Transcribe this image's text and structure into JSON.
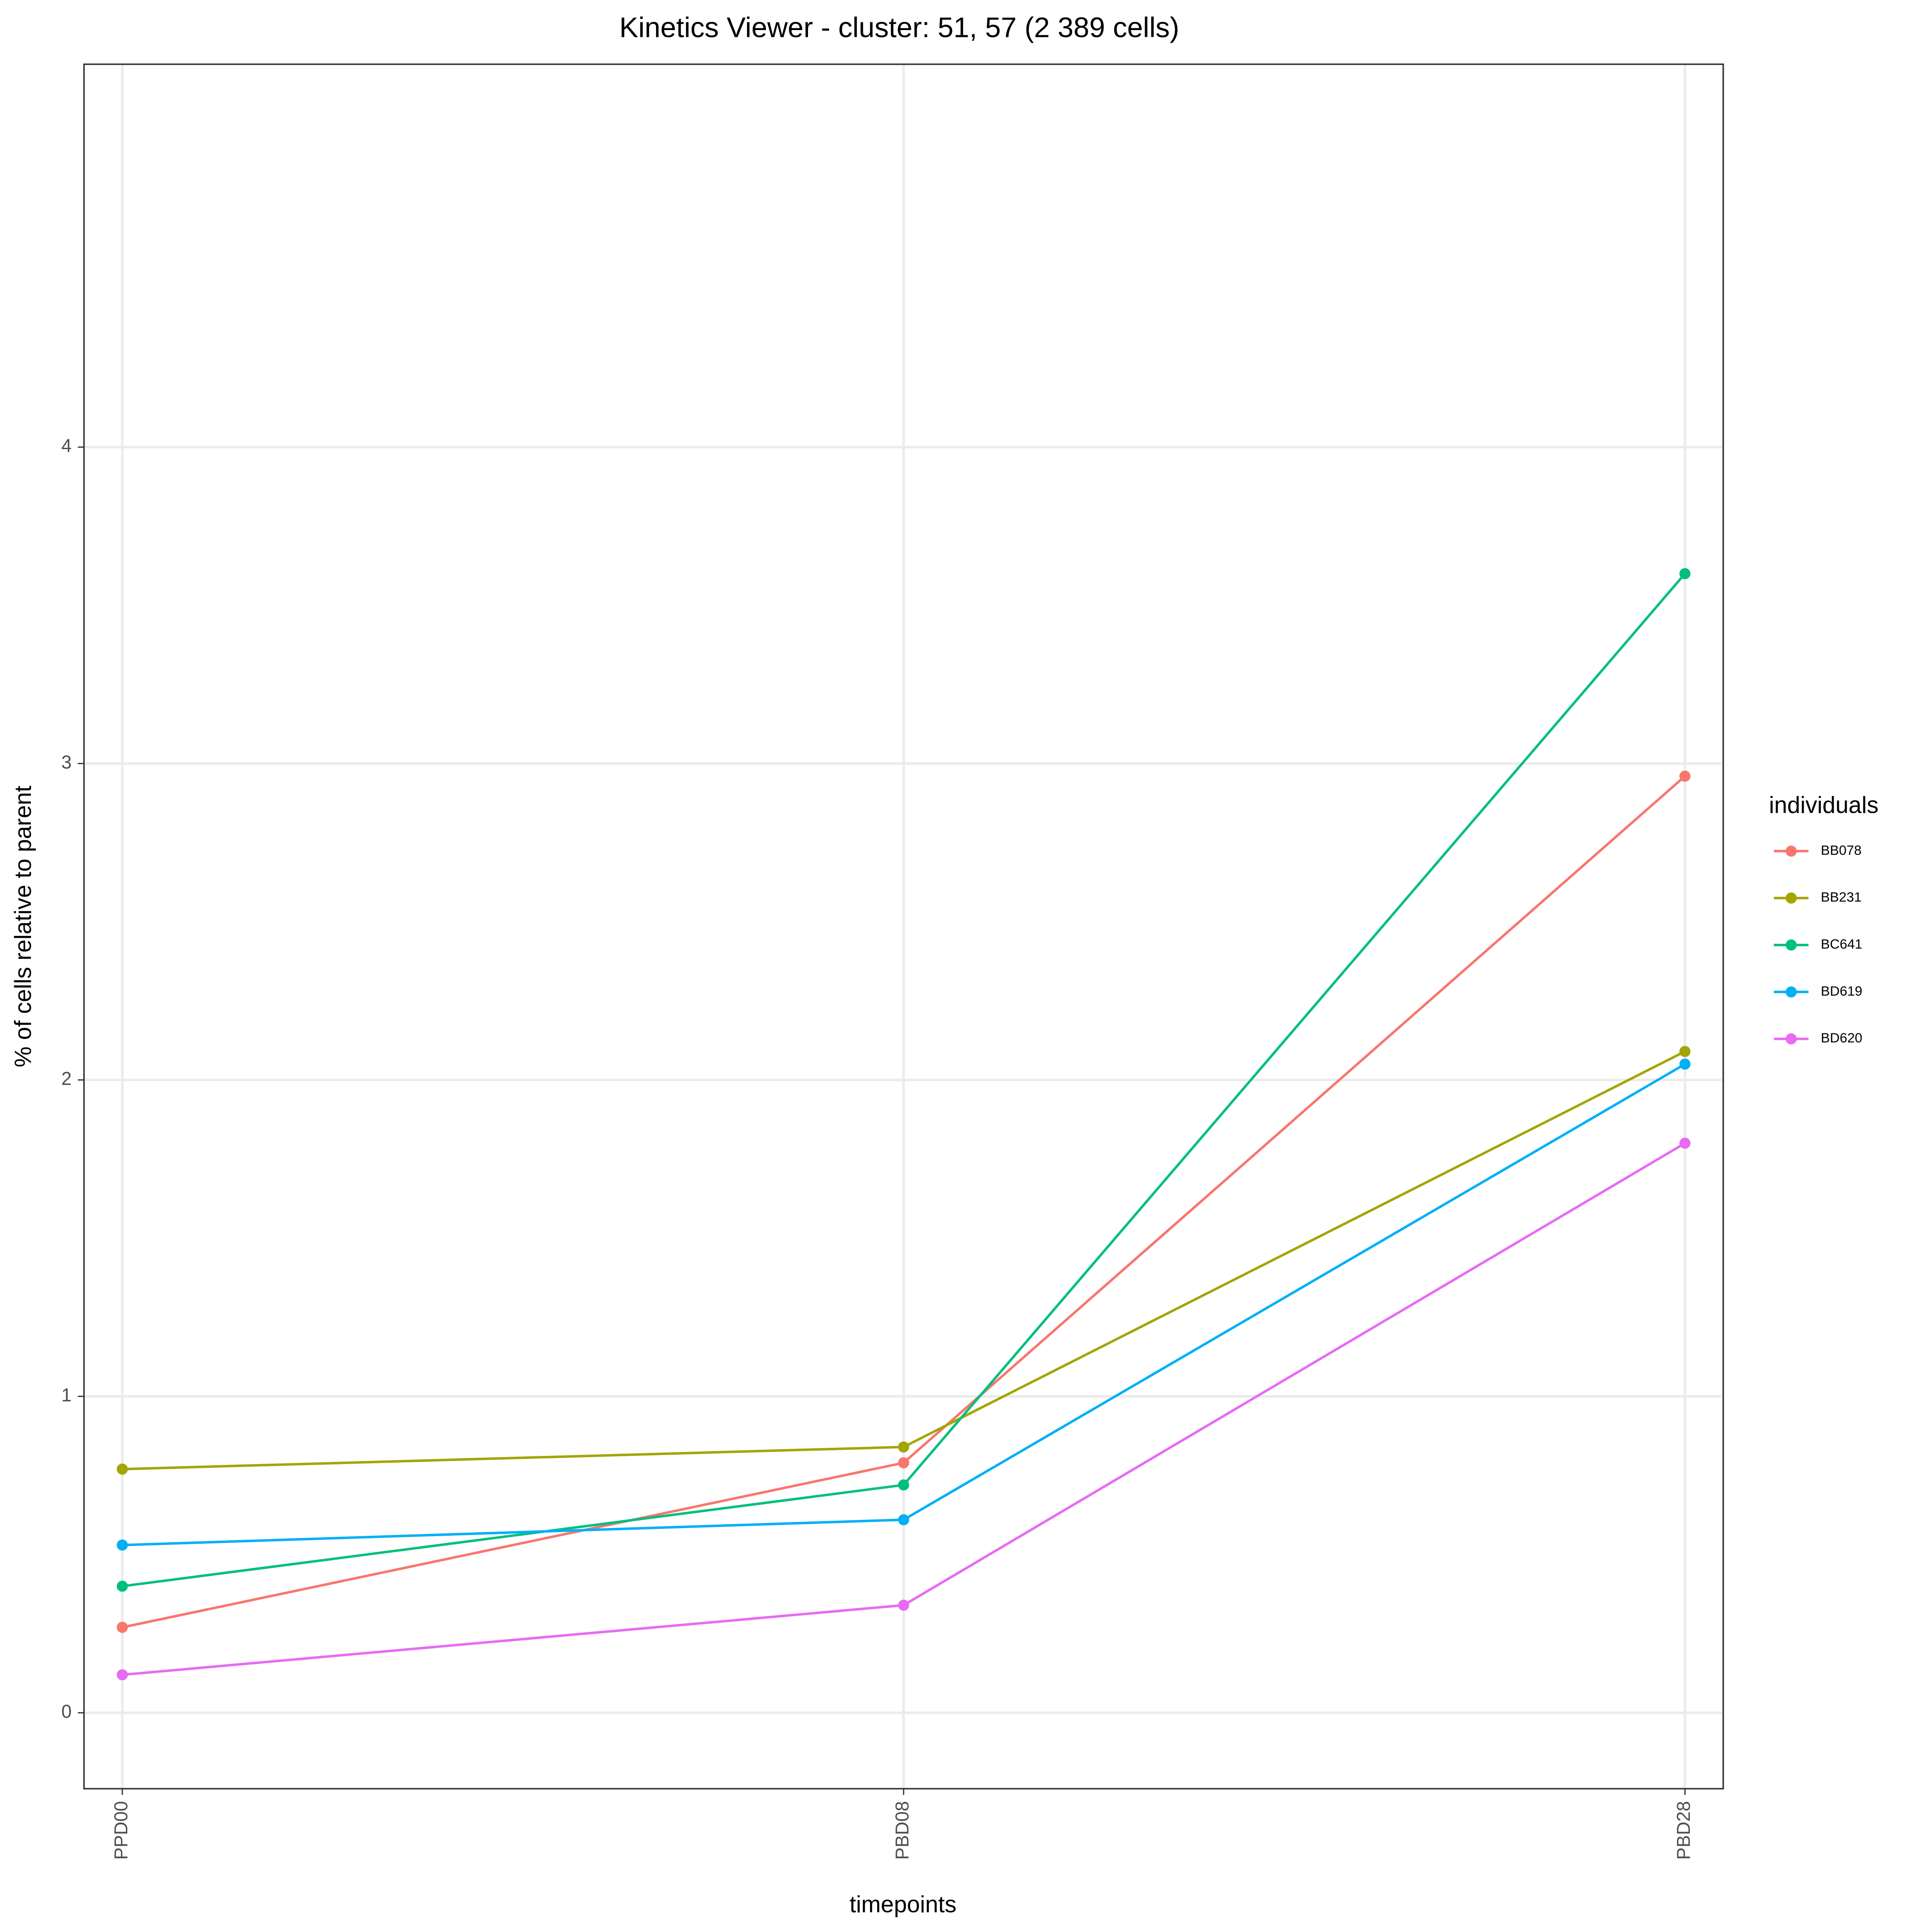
{
  "chart_data": {
    "type": "line",
    "title": "Kinetics Viewer - cluster: 51, 57 (2 389 cells)",
    "x_label": "timepoints",
    "y_label": "% of cells relative to parent",
    "legend_title": "individuals",
    "legend_position": "right",
    "categories": [
      "PPD00",
      "PBD08",
      "PBD28"
    ],
    "series": [
      {
        "name": "BB078",
        "color": "#F8766D",
        "values": [
          0.27,
          0.79,
          2.96
        ]
      },
      {
        "name": "BB231",
        "color": "#A3A500",
        "values": [
          0.77,
          0.84,
          2.09
        ]
      },
      {
        "name": "BC641",
        "color": "#00BF7D",
        "values": [
          0.4,
          0.72,
          3.6
        ]
      },
      {
        "name": "BD619",
        "color": "#00B0F6",
        "values": [
          0.53,
          0.61,
          2.05
        ]
      },
      {
        "name": "BD620",
        "color": "#E76BF3",
        "values": [
          0.12,
          0.34,
          1.8
        ]
      }
    ],
    "ylim": [
      -0.24,
      5.21
    ],
    "yticks": [
      0,
      1,
      2,
      3,
      4
    ],
    "grid": true
  }
}
